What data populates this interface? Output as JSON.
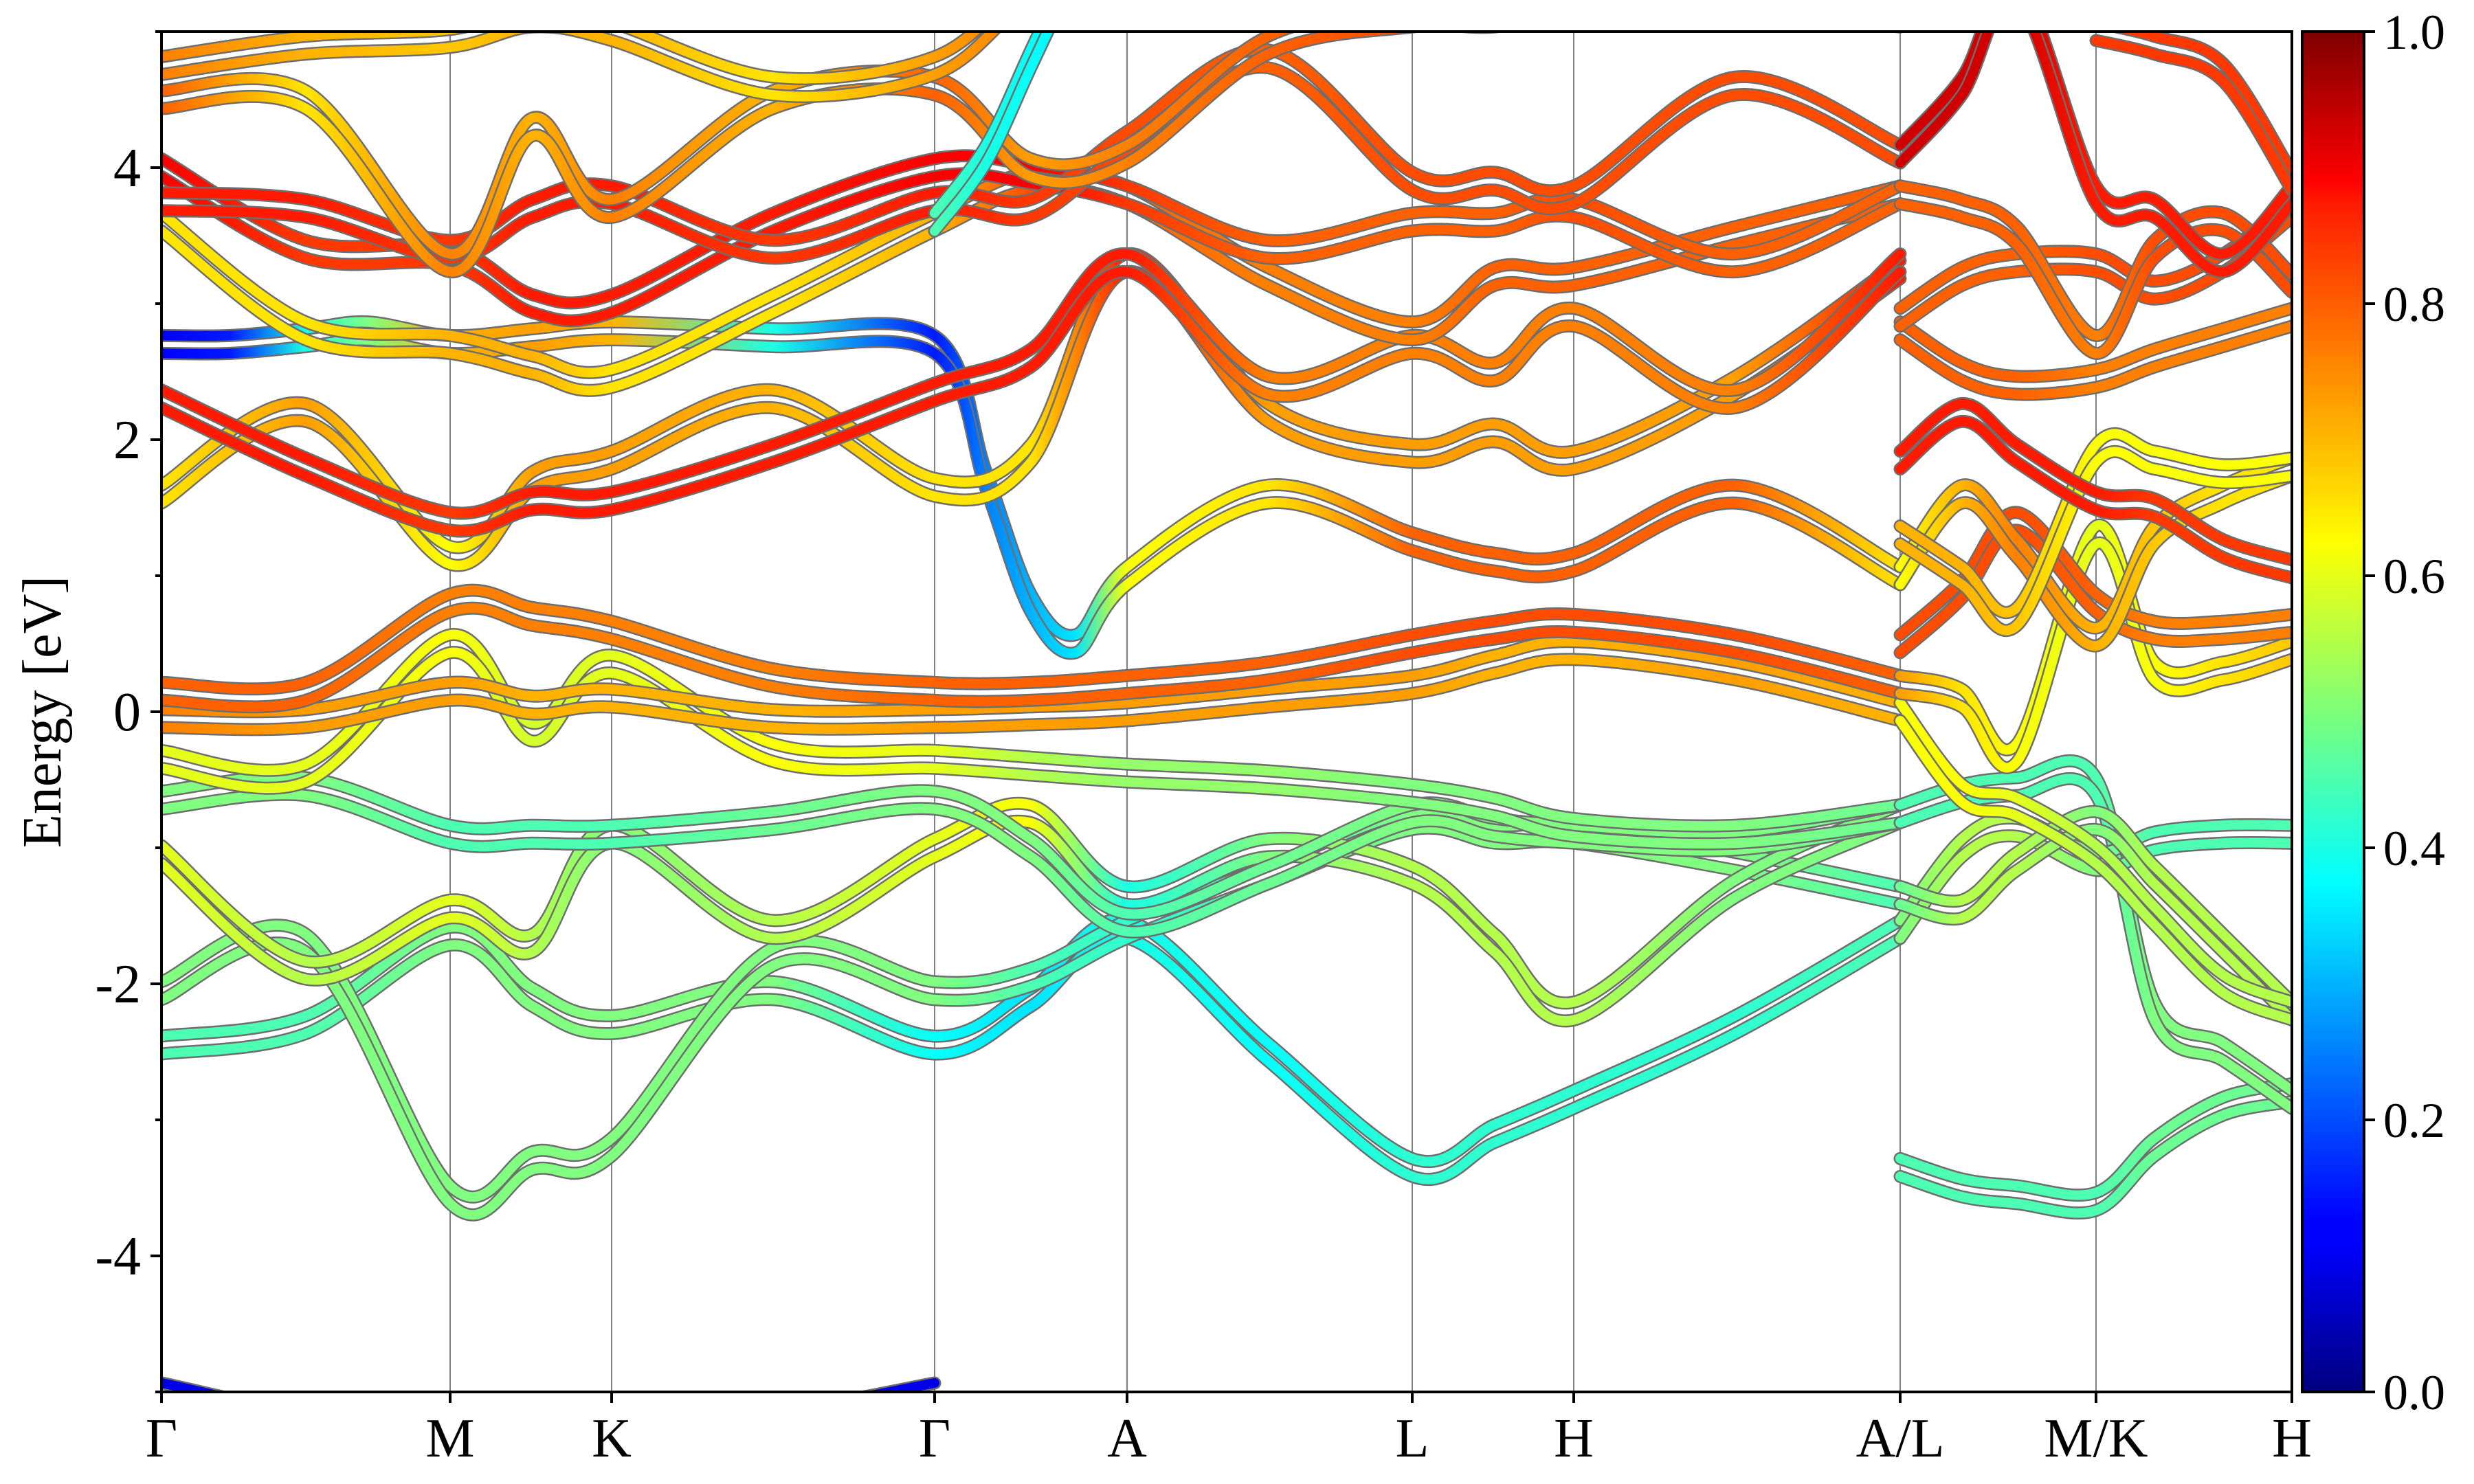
{
  "chart_data": {
    "type": "line",
    "title": "",
    "ylabel": "Energy [eV]",
    "xlabel": "",
    "ylim": [
      -5,
      5
    ],
    "xlim": [
      0,
      3.1
    ],
    "y_ticks": [
      -4,
      -2,
      0,
      2,
      4
    ],
    "y_tick_labels": [
      "-4",
      "-2",
      "0",
      "2",
      "4"
    ],
    "k_points": [
      {
        "label": "Γ",
        "x": 0
      },
      {
        "label": "M",
        "x": 0.42
      },
      {
        "label": "K",
        "x": 0.655
      },
      {
        "label": "Γ",
        "x": 1.125
      },
      {
        "label": "A",
        "x": 1.405
      },
      {
        "label": "L",
        "x": 1.82
      },
      {
        "label": "H",
        "x": 2.055
      },
      {
        "label": "A/L",
        "x": 2.53
      },
      {
        "label": "M/K",
        "x": 2.815
      },
      {
        "label": "H",
        "x": 3.1
      }
    ],
    "colorbar": {
      "colormap": "jet",
      "range": [
        0.0,
        1.0
      ],
      "ticks": [
        0.0,
        0.2,
        0.4,
        0.6,
        0.8,
        1.0
      ],
      "tick_labels": [
        "0.0",
        "0.2",
        "0.4",
        "0.6",
        "0.8",
        "1.0"
      ]
    },
    "series": [
      {
        "x": [
          0,
          0.21,
          0.42,
          0.54,
          0.655,
          0.89,
          1.125,
          1.265,
          1.405,
          1.61,
          1.82,
          1.94,
          2.055,
          2.29,
          2.53
        ],
        "y": [
          -2.45,
          -2.3,
          -1.65,
          -2.1,
          -2.3,
          -2.05,
          -2.45,
          -2.1,
          -1.6,
          -2.5,
          -3.35,
          -3.1,
          -2.85,
          -2.3,
          -1.6
        ],
        "c": [
          0.45,
          0.45,
          0.5,
          0.5,
          0.5,
          0.5,
          0.38,
          0.35,
          0.4,
          0.38,
          0.42,
          0.42,
          0.42,
          0.42,
          0.45
        ]
      },
      {
        "x": [
          0,
          0.21,
          0.42,
          0.54,
          0.655,
          0.89,
          1.125,
          1.265,
          1.405,
          1.61,
          1.82,
          1.94,
          2.055,
          2.29,
          2.53
        ],
        "y": [
          -2.05,
          -1.7,
          -3.55,
          -3.3,
          -3.2,
          -1.8,
          -2.05,
          -1.95,
          -1.6,
          -1.2,
          -0.8,
          -0.9,
          -0.9,
          -1.1,
          -1.35
        ],
        "c": [
          0.5,
          0.5,
          0.5,
          0.5,
          0.5,
          0.5,
          0.5,
          0.45,
          0.42,
          0.45,
          0.5,
          0.5,
          0.5,
          0.5,
          0.45
        ]
      },
      {
        "x": [
          0,
          0.21,
          0.42,
          0.54,
          0.655,
          0.89,
          1.125,
          1.265,
          1.405,
          1.61,
          1.82,
          1.94,
          2.055,
          2.29,
          2.53
        ],
        "y": [
          -1.05,
          -1.9,
          -1.45,
          -1.7,
          -0.9,
          -1.6,
          -1.0,
          -0.75,
          -1.35,
          -1.0,
          -1.2,
          -1.7,
          -2.2,
          -1.3,
          -0.75
        ],
        "c": [
          0.6,
          0.55,
          0.6,
          0.55,
          0.5,
          0.55,
          0.6,
          0.62,
          0.4,
          0.5,
          0.55,
          0.55,
          0.55,
          0.5,
          0.5
        ]
      },
      {
        "x": [
          0,
          0.21,
          0.42,
          0.54,
          0.655,
          0.89,
          1.125,
          1.265,
          1.405,
          1.61,
          1.82,
          1.94,
          2.055,
          2.29,
          2.53
        ],
        "y": [
          -0.65,
          -0.55,
          -0.9,
          -0.9,
          -0.9,
          -0.8,
          -0.65,
          -1.0,
          -1.55,
          -1.2,
          -0.75,
          -0.85,
          -0.9,
          -0.95,
          -0.75
        ],
        "c": [
          0.5,
          0.5,
          0.45,
          0.45,
          0.45,
          0.48,
          0.5,
          0.5,
          0.45,
          0.48,
          0.5,
          0.5,
          0.5,
          0.5,
          0.48
        ]
      },
      {
        "x": [
          0,
          0.21,
          0.42,
          0.54,
          0.655,
          0.89,
          1.125,
          1.265,
          1.405,
          1.61,
          1.82,
          1.94,
          2.055,
          2.29,
          2.53
        ],
        "y": [
          -0.35,
          -0.45,
          0.5,
          -0.15,
          0.35,
          -0.3,
          -0.35,
          -0.4,
          -0.45,
          -0.5,
          -0.6,
          -0.7,
          -0.85,
          -0.9,
          -0.75
        ],
        "c": [
          0.6,
          0.6,
          0.62,
          0.58,
          0.6,
          0.62,
          0.6,
          0.55,
          0.52,
          0.52,
          0.5,
          0.5,
          0.5,
          0.5,
          0.48
        ]
      },
      {
        "x": [
          0,
          0.21,
          0.42,
          0.54,
          0.655,
          0.89,
          1.125,
          1.265,
          1.405,
          1.61,
          1.82,
          1.94,
          2.055,
          2.29,
          2.53
        ],
        "y": [
          -0.05,
          -0.05,
          0.15,
          0.05,
          0.1,
          -0.05,
          -0.05,
          -0.03,
          0.0,
          0.1,
          0.2,
          0.35,
          0.45,
          0.3,
          0.0
        ],
        "c": [
          0.75,
          0.72,
          0.72,
          0.7,
          0.7,
          0.7,
          0.72,
          0.72,
          0.72,
          0.72,
          0.72,
          0.7,
          0.7,
          0.72,
          0.7
        ]
      },
      {
        "x": [
          0,
          0.21,
          0.42,
          0.54,
          0.655,
          0.89,
          1.125,
          1.265,
          1.405,
          1.61,
          1.82,
          1.94,
          2.055,
          2.29,
          2.53
        ],
        "y": [
          0.15,
          0.15,
          0.8,
          0.7,
          0.6,
          0.25,
          0.15,
          0.15,
          0.2,
          0.3,
          0.5,
          0.6,
          0.65,
          0.5,
          0.2
        ],
        "c": [
          0.78,
          0.78,
          0.75,
          0.75,
          0.75,
          0.75,
          0.78,
          0.78,
          0.78,
          0.78,
          0.8,
          0.8,
          0.8,
          0.8,
          0.78
        ]
      },
      {
        "x": [
          0,
          0.1,
          0.21,
          0.3,
          0.42,
          0.54,
          0.655,
          0.89,
          1.125,
          1.2,
          1.265,
          1.33,
          1.405,
          1.61,
          1.82,
          1.94,
          2.055,
          2.29,
          2.53
        ],
        "y": [
          2.7,
          2.7,
          2.75,
          2.8,
          2.7,
          2.75,
          2.8,
          2.75,
          2.7,
          1.7,
          0.8,
          0.5,
          1.0,
          1.6,
          1.25,
          1.1,
          1.1,
          1.6,
          1.0
        ],
        "c": [
          0.12,
          0.15,
          0.4,
          0.5,
          0.7,
          0.72,
          0.7,
          0.4,
          0.15,
          0.25,
          0.3,
          0.35,
          0.62,
          0.65,
          0.78,
          0.78,
          0.78,
          0.78,
          0.65
        ]
      },
      {
        "x": [
          0,
          0.21,
          0.42,
          0.54,
          0.655,
          0.89,
          1.125,
          1.265,
          1.405,
          1.61,
          1.82,
          1.94,
          2.055,
          2.29,
          2.53
        ],
        "y": [
          1.6,
          2.2,
          1.15,
          1.7,
          1.85,
          2.3,
          1.65,
          1.9,
          3.3,
          2.2,
          1.9,
          2.05,
          1.85,
          2.4,
          3.25
        ],
        "c": [
          0.65,
          0.72,
          0.62,
          0.72,
          0.72,
          0.7,
          0.65,
          0.65,
          0.85,
          0.72,
          0.72,
          0.72,
          0.72,
          0.72,
          0.85
        ]
      },
      {
        "x": [
          0,
          0.21,
          0.42,
          0.54,
          0.655,
          0.89,
          1.125,
          1.265,
          1.405,
          1.61,
          1.82,
          1.94,
          2.055,
          2.29,
          2.53
        ],
        "y": [
          2.3,
          1.8,
          1.4,
          1.55,
          1.55,
          1.9,
          2.35,
          2.6,
          3.3,
          2.4,
          2.7,
          2.5,
          2.9,
          2.3,
          3.3
        ],
        "c": [
          0.85,
          0.85,
          0.82,
          0.85,
          0.85,
          0.85,
          0.85,
          0.85,
          0.85,
          0.75,
          0.75,
          0.75,
          0.75,
          0.75,
          0.85
        ]
      },
      {
        "x": [
          0,
          0.21,
          0.42,
          0.54,
          0.655,
          0.89,
          1.125,
          1.265,
          1.405,
          1.61,
          1.82,
          1.94,
          2.055,
          2.29,
          2.53
        ],
        "y": [
          3.6,
          2.8,
          2.7,
          2.55,
          2.45,
          3.0,
          3.6,
          3.9,
          3.8,
          3.2,
          2.8,
          3.2,
          3.2,
          3.5,
          3.8
        ],
        "c": [
          0.65,
          0.65,
          0.7,
          0.7,
          0.65,
          0.65,
          0.7,
          0.8,
          0.78,
          0.75,
          0.75,
          0.78,
          0.78,
          0.78,
          0.78
        ]
      },
      {
        "x": [
          0,
          0.21,
          0.42,
          0.54,
          0.655,
          0.89,
          1.125,
          1.265,
          1.405,
          1.61,
          1.82,
          1.94,
          2.055,
          2.29,
          2.53
        ],
        "y": [
          4.0,
          3.4,
          3.35,
          3.0,
          3.0,
          3.6,
          4.0,
          3.95,
          3.8,
          3.4,
          3.6,
          3.6,
          3.7,
          3.3,
          3.8
        ],
        "c": [
          0.88,
          0.82,
          0.82,
          0.85,
          0.85,
          0.85,
          0.88,
          0.88,
          0.82,
          0.78,
          0.78,
          0.78,
          0.8,
          0.78,
          0.78
        ]
      },
      {
        "x": [
          0,
          0.21,
          0.42,
          0.54,
          0.655,
          0.89,
          1.125,
          1.265,
          1.405,
          1.61,
          1.82,
          1.94,
          2.055,
          2.29,
          2.53
        ],
        "y": [
          3.75,
          3.7,
          3.4,
          3.7,
          3.8,
          3.4,
          3.75,
          3.7,
          4.2,
          4.8,
          3.9,
          3.9,
          3.8,
          4.6,
          4.1
        ],
        "c": [
          0.85,
          0.85,
          0.82,
          0.85,
          0.85,
          0.82,
          0.85,
          0.82,
          0.8,
          0.78,
          0.8,
          0.8,
          0.8,
          0.8,
          0.8
        ]
      },
      {
        "x": [
          0,
          0.21,
          0.42,
          0.54,
          0.655,
          0.89,
          1.125,
          1.265,
          1.405,
          1.61,
          1.82,
          1.94,
          2.055,
          2.29,
          2.53
        ],
        "y": [
          4.5,
          4.5,
          3.3,
          4.3,
          3.7,
          4.5,
          4.6,
          4.0,
          4.1,
          4.9,
          5.1,
          5.1,
          5.2,
          5.2,
          5.1
        ],
        "c": [
          0.78,
          0.65,
          0.75,
          0.7,
          0.75,
          0.7,
          0.78,
          0.72,
          0.75,
          0.78,
          0.8,
          0.8,
          0.8,
          0.8,
          0.8
        ]
      },
      {
        "x": [
          0,
          0.21,
          0.42,
          0.54,
          0.655,
          0.89,
          1.125,
          1.265,
          1.405
        ],
        "y": [
          4.75,
          4.9,
          4.95,
          5.1,
          5.0,
          4.6,
          4.75,
          5.3,
          5.5
        ],
        "c": [
          0.75,
          0.7,
          0.68,
          0.7,
          0.7,
          0.65,
          0.72,
          0.75,
          0.78
        ]
      },
      {
        "x": [
          1.125,
          1.2,
          1.265,
          1.33
        ],
        "y": [
          3.6,
          4.1,
          4.8,
          5.5
        ],
        "c": [
          0.45,
          0.4,
          0.38,
          0.36
        ]
      },
      {
        "x": [
          0,
          0.3,
          0.6,
          0.9,
          1.125
        ],
        "y": [
          -5.0,
          -5.3,
          -5.3,
          -5.2,
          -5.0
        ],
        "c": [
          0.1,
          0.1,
          0.1,
          0.1,
          0.1
        ]
      },
      {
        "x": [
          2.53,
          2.62,
          2.7,
          2.815,
          2.9,
          3.0,
          3.1
        ],
        "y": [
          -3.35,
          -3.5,
          -3.55,
          -3.6,
          -3.2,
          -2.9,
          -2.8
        ],
        "c": [
          0.45,
          0.45,
          0.45,
          0.45,
          0.48,
          0.48,
          0.48
        ]
      },
      {
        "x": [
          2.53,
          2.62,
          2.7,
          2.815,
          2.9,
          3.0,
          3.1
        ],
        "y": [
          -0.75,
          -0.6,
          -0.55,
          -0.55,
          -2.2,
          -2.5,
          -2.85
        ],
        "c": [
          0.45,
          0.45,
          0.45,
          0.45,
          0.5,
          0.5,
          0.5
        ]
      },
      {
        "x": [
          2.53,
          2.62,
          2.7,
          2.815,
          2.9,
          3.0,
          3.1
        ],
        "y": [
          -1.6,
          -1.0,
          -0.85,
          -1.1,
          -0.95,
          -0.9,
          -0.9
        ],
        "c": [
          0.5,
          0.55,
          0.55,
          0.5,
          0.45,
          0.45,
          0.45
        ]
      },
      {
        "x": [
          2.53,
          2.62,
          2.7,
          2.815,
          2.9,
          3.0,
          3.1
        ],
        "y": [
          -1.35,
          -1.45,
          -1.1,
          -0.8,
          -1.2,
          -1.7,
          -2.2
        ],
        "c": [
          0.48,
          0.55,
          0.55,
          0.5,
          0.55,
          0.55,
          0.55
        ]
      },
      {
        "x": [
          2.53,
          2.62,
          2.7,
          2.815,
          2.9,
          3.0,
          3.1
        ],
        "y": [
          0.0,
          -0.6,
          -0.7,
          -1.05,
          -1.5,
          -2.0,
          -2.2
        ],
        "c": [
          0.62,
          0.62,
          0.6,
          0.55,
          0.55,
          0.55,
          0.55
        ]
      },
      {
        "x": [
          2.53,
          2.62,
          2.7,
          2.815,
          2.9,
          3.0,
          3.1
        ],
        "y": [
          0.2,
          0.1,
          -0.3,
          1.3,
          0.3,
          0.3,
          0.45
        ],
        "c": [
          0.72,
          0.65,
          0.62,
          0.6,
          0.62,
          0.65,
          0.68
        ]
      },
      {
        "x": [
          2.53,
          2.62,
          2.7,
          2.815,
          2.9,
          3.0,
          3.1
        ],
        "y": [
          0.5,
          0.9,
          1.4,
          0.8,
          0.6,
          0.6,
          0.65
        ],
        "c": [
          0.8,
          0.8,
          0.8,
          0.78,
          0.75,
          0.75,
          0.75
        ]
      },
      {
        "x": [
          2.53,
          2.62,
          2.7,
          2.815,
          2.9,
          3.0,
          3.1
        ],
        "y": [
          1.0,
          1.6,
          1.2,
          0.55,
          1.3,
          1.6,
          1.8
        ],
        "c": [
          0.62,
          0.7,
          0.75,
          0.7,
          0.68,
          0.65,
          0.65
        ]
      },
      {
        "x": [
          2.53,
          2.62,
          2.7,
          2.815,
          2.9,
          3.0,
          3.1
        ],
        "y": [
          1.3,
          1.0,
          0.7,
          1.9,
          1.85,
          1.75,
          1.8
        ],
        "c": [
          0.7,
          0.7,
          0.68,
          0.62,
          0.62,
          0.62,
          0.62
        ]
      },
      {
        "x": [
          2.53,
          2.62,
          2.7,
          2.815,
          2.9,
          3.0,
          3.1
        ],
        "y": [
          1.85,
          2.2,
          1.9,
          1.55,
          1.5,
          1.2,
          1.05
        ],
        "c": [
          0.85,
          0.85,
          0.85,
          0.85,
          0.82,
          0.82,
          0.82
        ]
      },
      {
        "x": [
          2.53,
          2.62,
          2.7,
          2.815,
          2.9,
          3.0,
          3.1
        ],
        "y": [
          2.8,
          2.5,
          2.4,
          2.45,
          2.6,
          2.75,
          2.9
        ],
        "c": [
          0.78,
          0.78,
          0.78,
          0.75,
          0.75,
          0.75,
          0.75
        ]
      },
      {
        "x": [
          2.53,
          2.62,
          2.7,
          2.815,
          2.9,
          3.0,
          3.1
        ],
        "y": [
          2.9,
          3.2,
          3.3,
          3.3,
          3.1,
          3.3,
          3.7
        ],
        "c": [
          0.78,
          0.78,
          0.78,
          0.8,
          0.8,
          0.8,
          0.8
        ]
      },
      {
        "x": [
          2.53,
          2.62,
          2.7,
          2.815,
          2.9,
          3.0,
          3.1
        ],
        "y": [
          3.8,
          3.7,
          3.5,
          2.7,
          3.4,
          3.6,
          3.15
        ],
        "c": [
          0.78,
          0.78,
          0.78,
          0.75,
          0.8,
          0.8,
          0.8
        ]
      },
      {
        "x": [
          2.53,
          2.62,
          2.7,
          2.815,
          2.9,
          3.0,
          3.1
        ],
        "y": [
          4.1,
          4.6,
          5.3,
          3.8,
          3.7,
          3.3,
          3.8
        ],
        "c": [
          0.92,
          0.92,
          0.92,
          0.85,
          0.85,
          0.85,
          0.85
        ]
      },
      {
        "x": [
          2.815,
          2.9,
          3.0,
          3.1
        ],
        "y": [
          5.0,
          4.9,
          4.7,
          3.9
        ],
        "c": [
          0.82,
          0.82,
          0.82,
          0.82
        ]
      }
    ]
  }
}
